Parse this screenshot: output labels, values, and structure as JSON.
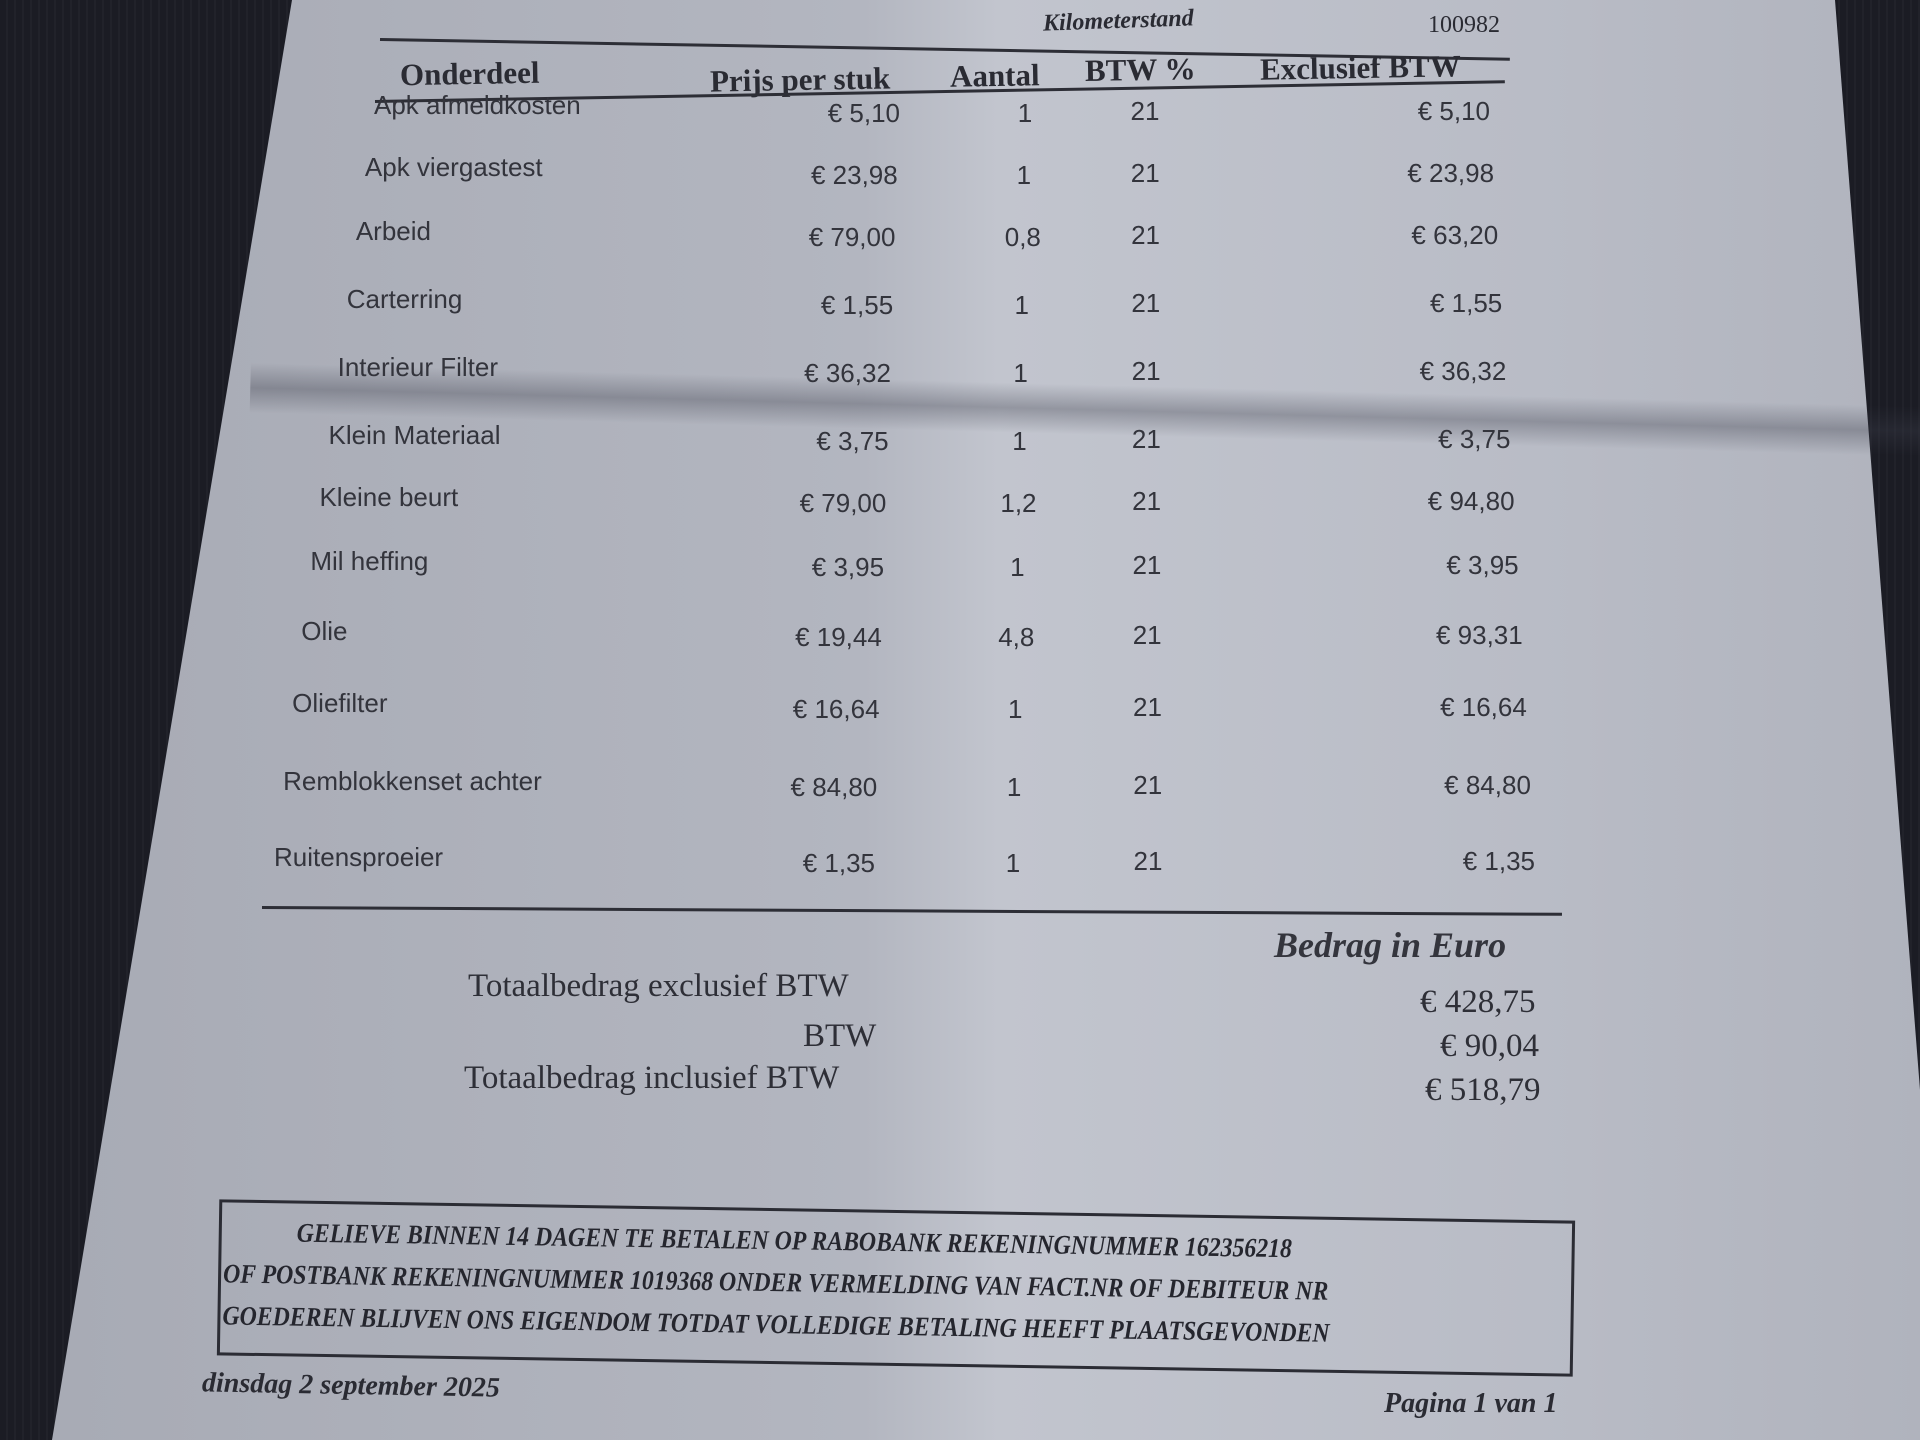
{
  "header": {
    "km_label": "Kilometerstand",
    "km_value": "100982"
  },
  "table": {
    "columns": [
      "Onderdeel",
      "Prijs per stuk",
      "Aantal",
      "BTW %",
      "Exclusief BTW"
    ],
    "rows": [
      {
        "name": "Apk afmeldkosten",
        "price": "€ 5,10",
        "qty": "1",
        "vat": "21",
        "excl": "€ 5,10"
      },
      {
        "name": "Apk viergastest",
        "price": "€ 23,98",
        "qty": "1",
        "vat": "21",
        "excl": "€ 23,98"
      },
      {
        "name": "Arbeid",
        "price": "€ 79,00",
        "qty": "0,8",
        "vat": "21",
        "excl": "€ 63,20"
      },
      {
        "name": "Carterring",
        "price": "€ 1,55",
        "qty": "1",
        "vat": "21",
        "excl": "€ 1,55"
      },
      {
        "name": "Interieur Filter",
        "price": "€ 36,32",
        "qty": "1",
        "vat": "21",
        "excl": "€ 36,32"
      },
      {
        "name": "Klein Materiaal",
        "price": "€ 3,75",
        "qty": "1",
        "vat": "21",
        "excl": "€ 3,75"
      },
      {
        "name": "Kleine beurt",
        "price": "€ 79,00",
        "qty": "1,2",
        "vat": "21",
        "excl": "€ 94,80"
      },
      {
        "name": "Mil heffing",
        "price": "€ 3,95",
        "qty": "1",
        "vat": "21",
        "excl": "€ 3,95"
      },
      {
        "name": "Olie",
        "price": "€ 19,44",
        "qty": "4,8",
        "vat": "21",
        "excl": "€ 93,31"
      },
      {
        "name": "Oliefilter",
        "price": "€ 16,64",
        "qty": "1",
        "vat": "21",
        "excl": "€ 16,64"
      },
      {
        "name": "Remblokkenset achter",
        "price": "€ 84,80",
        "qty": "1",
        "vat": "21",
        "excl": "€ 84,80"
      },
      {
        "name": "Ruitensproeier",
        "price": "€ 1,35",
        "qty": "1",
        "vat": "21",
        "excl": "€ 1,35"
      }
    ]
  },
  "totals": {
    "amount_header": "Bedrag in Euro",
    "excl_label": "Totaalbedrag exclusief BTW",
    "excl_value": "€ 428,75",
    "vat_label": "BTW",
    "vat_value": "€ 90,04",
    "incl_label": "Totaalbedrag inclusief BTW",
    "incl_value": "€ 518,79"
  },
  "notice": {
    "line1": "GELIEVE BINNEN 14 DAGEN TE BETALEN OP RABOBANK REKENINGNUMMER 162356218",
    "line2": "OF POSTBANK REKENINGNUMMER 1019368 ONDER VERMELDING VAN FACT.NR OF DEBITEUR NR",
    "line3": "GOEDEREN BLIJVEN ONS EIGENDOM TOTDAT VOLLEDIGE BETALING HEEFT PLAATSGEVONDEN"
  },
  "footer": {
    "date": "dinsdag 2 september 2025",
    "page": "Pagina 1 van 1"
  }
}
